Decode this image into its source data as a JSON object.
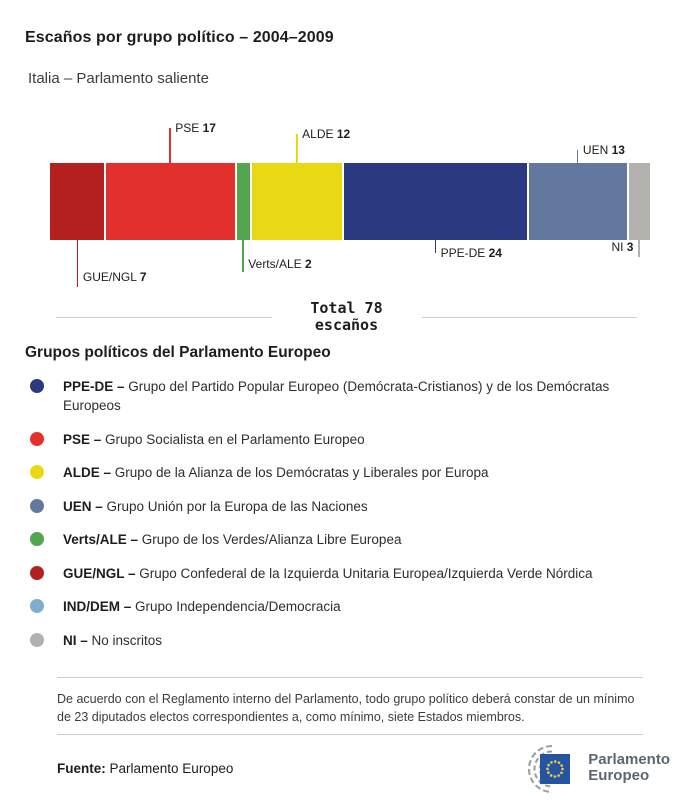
{
  "header": {
    "title": "Escaños por grupo político – 2004–2009",
    "subtitle": "Italia – Parlamento saliente"
  },
  "chart_data": {
    "type": "bar",
    "variant": "horizontal-stacked-seats",
    "title": "Escaños por grupo político – 2004–2009",
    "subtitle": "Italia – Parlamento saliente",
    "total_seats": 78,
    "total_label_line1": "Total 78",
    "total_label_line2": "escaños",
    "segments": [
      {
        "group": "GUE/NGL",
        "seats": 7,
        "color": "#b2211f",
        "label_side": "bottom"
      },
      {
        "group": "PSE",
        "seats": 17,
        "color": "#e2312d",
        "label_side": "top"
      },
      {
        "group": "Verts/ALE",
        "seats": 2,
        "color": "#55a44f",
        "label_side": "bottom"
      },
      {
        "group": "ALDE",
        "seats": 12,
        "color": "#e8d914",
        "label_side": "top"
      },
      {
        "group": "PPE-DE",
        "seats": 24,
        "color": "#2b3a80",
        "label_side": "bottom"
      },
      {
        "group": "UEN",
        "seats": 13,
        "color": "#63789f",
        "label_side": "top"
      },
      {
        "group": "NI",
        "seats": 3,
        "color": "#b2b1ad",
        "label_side": "bottom"
      }
    ]
  },
  "legend": {
    "heading": "Grupos políticos del Parlamento Europeo",
    "items": [
      {
        "abbr": "PPE-DE –",
        "desc": "Grupo del Partido Popular Europeo (Demócrata-Cristianos) y de los Demócratas Europeos",
        "color": "#2b3a80"
      },
      {
        "abbr": "PSE –",
        "desc": "Grupo Socialista en el Parlamento Europeo",
        "color": "#e2312d"
      },
      {
        "abbr": "ALDE –",
        "desc": "Grupo de la Alianza de los Demócratas y Liberales por Europa",
        "color": "#e8d914"
      },
      {
        "abbr": "UEN –",
        "desc": "Grupo Unión por la Europa de las Naciones",
        "color": "#63789f"
      },
      {
        "abbr": "Verts/ALE –",
        "desc": "Grupo de los Verdes/Alianza Libre Europea",
        "color": "#55a44f"
      },
      {
        "abbr": "GUE/NGL –",
        "desc": "Grupo Confederal de la Izquierda Unitaria Europea/Izquierda Verde Nórdica",
        "color": "#b2211f"
      },
      {
        "abbr": "IND/DEM –",
        "desc": "Grupo Independencia/Democracia",
        "color": "#7faecc"
      },
      {
        "abbr": "NI –",
        "desc": "No inscritos",
        "color": "#b2b1ad"
      }
    ]
  },
  "footer": {
    "note": "De acuerdo con el Reglamento interno del Parlamento, todo grupo político deberá constar de un mínimo de 23 diputados electos correspondientes a, como mínimo, siete Estados miembros.",
    "source_label": "Fuente:",
    "source_value": "Parlamento Europeo",
    "logo_line1": "Parlamento",
    "logo_line2": "Europeo"
  }
}
